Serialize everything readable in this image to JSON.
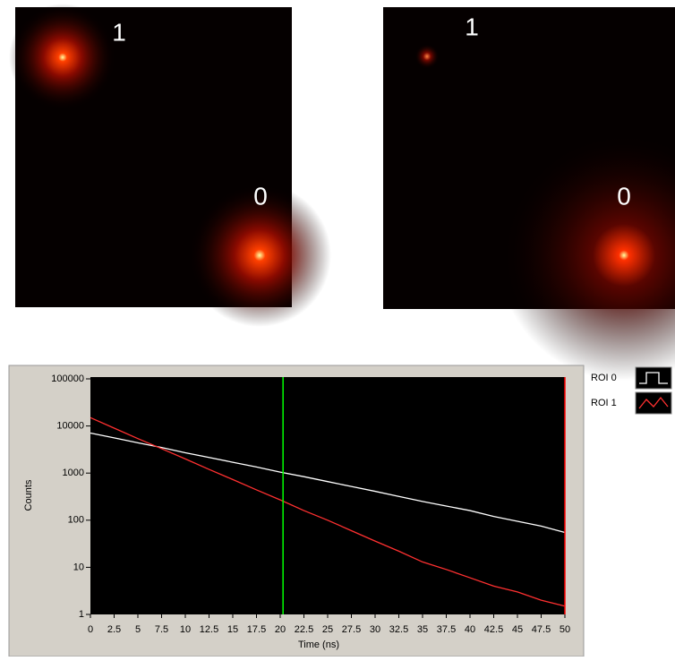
{
  "images": [
    {
      "labels": [
        "1",
        "0"
      ]
    },
    {
      "labels": [
        "1",
        "0"
      ]
    }
  ],
  "chart_data": {
    "type": "line",
    "y_label": "Counts",
    "x_label": "Time (ns)",
    "log_y": true,
    "x": [
      0,
      2.5,
      5,
      7.5,
      10,
      12.5,
      15,
      17.5,
      20,
      22.5,
      25,
      27.5,
      30,
      32.5,
      35,
      37.5,
      40,
      42.5,
      45,
      47.5,
      50
    ],
    "series": [
      {
        "name": "ROI 0",
        "color": "#ffffff",
        "values": [
          7080,
          5600,
          4400,
          3500,
          2700,
          2150,
          1700,
          1350,
          1050,
          840,
          660,
          520,
          410,
          320,
          250,
          200,
          160,
          120,
          95,
          75,
          55
        ]
      },
      {
        "name": "ROI 1",
        "color": "#ff3030",
        "values": [
          15000,
          9000,
          5400,
          3300,
          2000,
          1200,
          730,
          440,
          270,
          160,
          100,
          60,
          36,
          22,
          13,
          9,
          6,
          4,
          3,
          2,
          1.5
        ]
      }
    ],
    "cursors": [
      {
        "x": 20.3,
        "color": "#00ff00"
      },
      {
        "x": 50,
        "color": "#ff0000"
      }
    ],
    "xlim": [
      0,
      50
    ],
    "xticks": [
      0,
      2.5,
      5,
      7.5,
      10,
      12.5,
      15,
      17.5,
      20,
      22.5,
      25,
      27.5,
      30,
      32.5,
      35,
      37.5,
      40,
      42.5,
      45,
      47.5,
      50
    ],
    "ylim": [
      1,
      100000
    ],
    "yticks": [
      1,
      10,
      100,
      1000,
      10000,
      100000
    ]
  }
}
